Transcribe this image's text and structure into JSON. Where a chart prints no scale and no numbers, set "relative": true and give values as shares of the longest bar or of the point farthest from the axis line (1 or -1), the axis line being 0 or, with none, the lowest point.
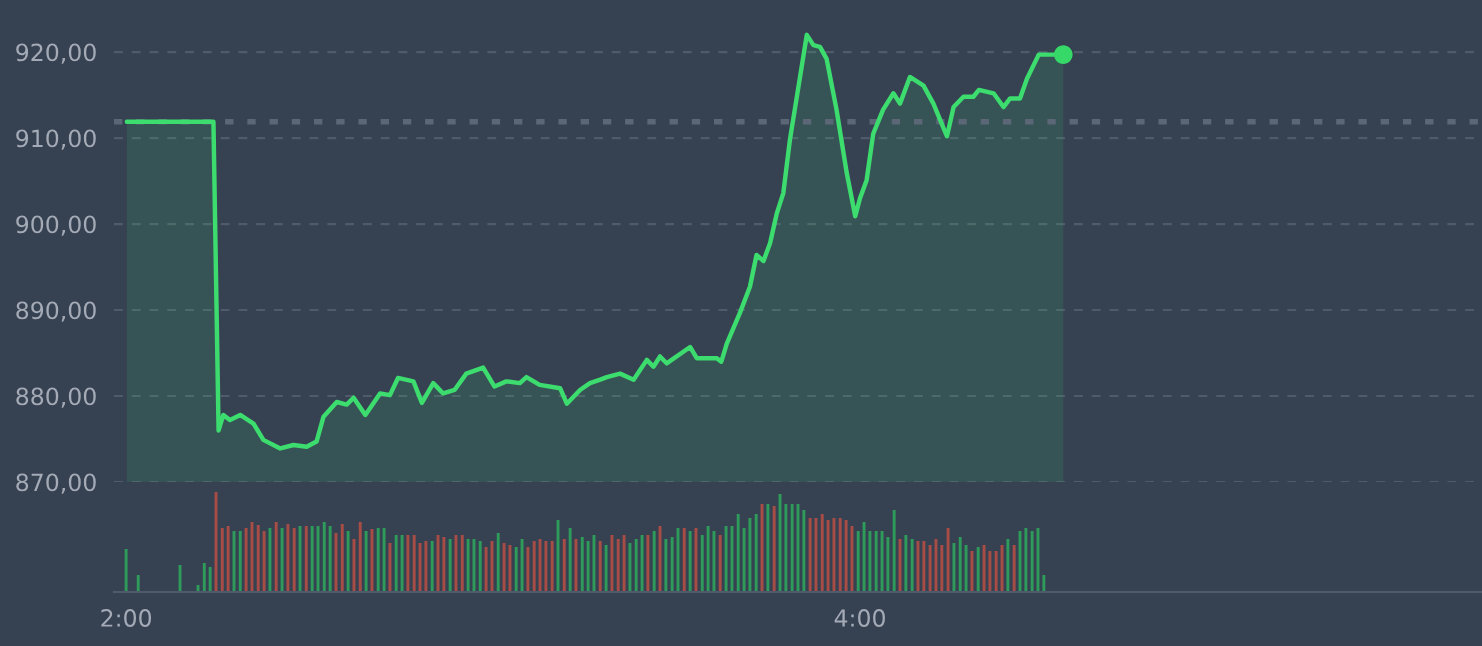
{
  "chart_data": [
    {
      "type": "area",
      "xlim": [
        1.967,
        5.695
      ],
      "ylim": [
        870,
        926.05
      ],
      "yticks": [
        {
          "value": 870,
          "label": "870,00"
        },
        {
          "value": 880,
          "label": "880,00"
        },
        {
          "value": 890,
          "label": "890,00"
        },
        {
          "value": 900,
          "label": "900,00"
        },
        {
          "value": 910,
          "label": "910,00"
        },
        {
          "value": 920,
          "label": "920,00"
        }
      ],
      "tick_labels": "y",
      "grid": "y",
      "ref_lines": [
        {
          "axis": "y",
          "value": 911.9,
          "color": "#5b6677",
          "line_style": "dotted"
        }
      ],
      "series": [
        {
          "type": "area",
          "color": "#3ddc6e",
          "x": [
            2.002,
            2.238,
            2.252,
            2.265,
            2.283,
            2.311,
            2.347,
            2.374,
            2.42,
            2.456,
            2.492,
            2.519,
            2.538,
            2.574,
            2.601,
            2.62,
            2.652,
            2.692,
            2.719,
            2.741,
            2.783,
            2.806,
            2.837,
            2.864,
            2.895,
            2.927,
            2.973,
            3.004,
            3.036,
            3.073,
            3.091,
            3.127,
            3.183,
            3.201,
            3.237,
            3.264,
            3.292,
            3.31,
            3.346,
            3.383,
            3.419,
            3.437,
            3.455,
            3.473,
            3.537,
            3.555,
            3.609,
            3.622,
            3.637,
            3.673,
            3.7,
            3.718,
            3.737,
            3.755,
            3.773,
            3.791,
            3.809,
            3.855,
            3.873,
            3.891,
            3.909,
            3.936,
            3.964,
            3.987,
            4.0,
            4.018,
            4.036,
            4.063,
            4.091,
            4.109,
            4.136,
            4.173,
            4.2,
            4.237,
            4.255,
            4.282,
            4.309,
            4.324,
            4.364,
            4.391,
            4.409,
            4.436,
            4.455,
            4.487,
            4.554
          ],
          "values": [
            911.9,
            911.9,
            876.0,
            877.8,
            877.2,
            877.8,
            876.8,
            874.9,
            873.9,
            874.3,
            874.1,
            874.7,
            877.6,
            879.3,
            879.0,
            879.8,
            877.8,
            880.3,
            880.1,
            882.1,
            881.7,
            879.2,
            881.5,
            880.3,
            880.7,
            882.6,
            883.3,
            881.1,
            881.7,
            881.5,
            882.2,
            881.3,
            880.9,
            879.1,
            880.7,
            881.5,
            881.9,
            882.2,
            882.6,
            881.9,
            884.2,
            883.4,
            884.6,
            883.8,
            885.7,
            884.4,
            884.4,
            884.0,
            886.1,
            889.7,
            892.7,
            896.4,
            895.7,
            897.8,
            901.2,
            903.6,
            909.8,
            922.0,
            920.8,
            920.6,
            919.2,
            913.3,
            905.9,
            900.9,
            903.0,
            905.1,
            910.5,
            913.3,
            915.2,
            914.0,
            917.1,
            916.1,
            914.0,
            910.2,
            913.6,
            914.8,
            914.8,
            915.6,
            915.2,
            913.6,
            914.6,
            914.6,
            916.9,
            919.7,
            919.7
          ]
        },
        {
          "type": "scatter",
          "color": "#36d868",
          "marker": "circle",
          "x": [
            4.554
          ],
          "values": [
            919.7
          ]
        }
      ]
    },
    {
      "type": "bar",
      "relative": true,
      "xlim": [
        1.967,
        5.695
      ],
      "xticks": [
        {
          "value": 2,
          "label": "2:00"
        },
        {
          "value": 4,
          "label": "4:00"
        }
      ],
      "tick_labels": "x",
      "x": [
        2.0,
        2.033,
        2.147,
        2.196,
        2.213,
        2.229,
        2.245,
        2.262,
        2.278,
        2.294,
        2.311,
        2.327,
        2.343,
        2.36,
        2.376,
        2.392,
        2.409,
        2.425,
        2.441,
        2.458,
        2.474,
        2.491,
        2.507,
        2.523,
        2.54,
        2.556,
        2.572,
        2.589,
        2.605,
        2.621,
        2.638,
        2.654,
        2.67,
        2.687,
        2.703,
        2.719,
        2.736,
        2.752,
        2.768,
        2.785,
        2.801,
        2.817,
        2.834,
        2.85,
        2.866,
        2.883,
        2.899,
        2.916,
        2.932,
        2.948,
        2.965,
        2.981,
        2.997,
        3.014,
        3.03,
        3.046,
        3.063,
        3.079,
        3.095,
        3.112,
        3.128,
        3.144,
        3.161,
        3.177,
        3.194,
        3.21,
        3.226,
        3.243,
        3.259,
        3.275,
        3.292,
        3.308,
        3.324,
        3.341,
        3.357,
        3.373,
        3.39,
        3.406,
        3.422,
        3.439,
        3.455,
        3.471,
        3.488,
        3.504,
        3.521,
        3.537,
        3.553,
        3.57,
        3.586,
        3.602,
        3.619,
        3.635,
        3.651,
        3.668,
        3.684,
        3.7,
        3.717,
        3.733,
        3.749,
        3.766,
        3.782,
        3.798,
        3.815,
        3.831,
        3.847,
        3.864,
        3.88,
        3.897,
        3.913,
        3.929,
        3.946,
        3.962,
        3.978,
        3.995,
        4.011,
        4.027,
        4.044,
        4.06,
        4.076,
        4.093,
        4.109,
        4.125,
        4.142,
        4.158,
        4.174,
        4.191,
        4.207,
        4.223,
        4.24,
        4.256,
        4.273,
        4.289,
        4.305,
        4.322,
        4.338,
        4.354,
        4.371,
        4.387,
        4.403,
        4.42,
        4.436,
        4.452,
        4.469,
        4.485,
        4.501
      ],
      "values": [
        0.43,
        0.17,
        0.27,
        0.07,
        0.29,
        0.25,
        1.0,
        0.64,
        0.66,
        0.61,
        0.61,
        0.64,
        0.7,
        0.67,
        0.61,
        0.64,
        0.7,
        0.64,
        0.68,
        0.64,
        0.66,
        0.66,
        0.66,
        0.66,
        0.7,
        0.66,
        0.59,
        0.68,
        0.61,
        0.53,
        0.7,
        0.61,
        0.63,
        0.64,
        0.64,
        0.49,
        0.57,
        0.57,
        0.57,
        0.57,
        0.49,
        0.51,
        0.51,
        0.57,
        0.55,
        0.53,
        0.57,
        0.57,
        0.53,
        0.53,
        0.51,
        0.45,
        0.51,
        0.59,
        0.49,
        0.47,
        0.45,
        0.53,
        0.45,
        0.51,
        0.53,
        0.51,
        0.51,
        0.72,
        0.53,
        0.64,
        0.53,
        0.55,
        0.51,
        0.57,
        0.51,
        0.47,
        0.57,
        0.53,
        0.57,
        0.49,
        0.53,
        0.57,
        0.57,
        0.61,
        0.66,
        0.53,
        0.55,
        0.64,
        0.64,
        0.61,
        0.64,
        0.57,
        0.66,
        0.61,
        0.57,
        0.66,
        0.66,
        0.78,
        0.64,
        0.74,
        0.78,
        0.88,
        0.88,
        0.86,
        0.98,
        0.88,
        0.88,
        0.88,
        0.82,
        0.74,
        0.74,
        0.78,
        0.72,
        0.74,
        0.74,
        0.72,
        0.66,
        0.61,
        0.7,
        0.61,
        0.61,
        0.61,
        0.55,
        0.82,
        0.53,
        0.57,
        0.53,
        0.51,
        0.51,
        0.47,
        0.53,
        0.47,
        0.64,
        0.49,
        0.55,
        0.47,
        0.41,
        0.45,
        0.47,
        0.41,
        0.41,
        0.47,
        0.53,
        0.47,
        0.61,
        0.64,
        0.61,
        0.64,
        0.17
      ],
      "colors": [
        "#2e9b5a",
        "#2e9b5a",
        "#2e9b5a",
        "#2e9b5a",
        "#2e9b5a",
        "#2e9b5a",
        "#a84d46",
        "#a84d46",
        "#a84d46",
        "#2e9b5a",
        "#2e9b5a",
        "#a84d46",
        "#a84d46",
        "#a84d46",
        "#a84d46",
        "#2e9b5a",
        "#a84d46",
        "#2e9b5a",
        "#a84d46",
        "#a84d46",
        "#2e9b5a",
        "#a84d46",
        "#2e9b5a",
        "#2e9b5a",
        "#2e9b5a",
        "#2e9b5a",
        "#a84d46",
        "#a84d46",
        "#2e9b5a",
        "#a84d46",
        "#a84d46",
        "#2e9b5a",
        "#a84d46",
        "#2e9b5a",
        "#2e9b5a",
        "#a84d46",
        "#2e9b5a",
        "#2e9b5a",
        "#a84d46",
        "#a84d46",
        "#a84d46",
        "#a84d46",
        "#2e9b5a",
        "#a84d46",
        "#a84d46",
        "#2e9b5a",
        "#a84d46",
        "#a84d46",
        "#2e9b5a",
        "#2e9b5a",
        "#2e9b5a",
        "#a84d46",
        "#a84d46",
        "#2e9b5a",
        "#a84d46",
        "#a84d46",
        "#2e9b5a",
        "#2e9b5a",
        "#a84d46",
        "#a84d46",
        "#a84d46",
        "#a84d46",
        "#a84d46",
        "#2e9b5a",
        "#a84d46",
        "#2e9b5a",
        "#a84d46",
        "#2e9b5a",
        "#2e9b5a",
        "#2e9b5a",
        "#a84d46",
        "#2e9b5a",
        "#a84d46",
        "#a84d46",
        "#a84d46",
        "#2e9b5a",
        "#2e9b5a",
        "#2e9b5a",
        "#a84d46",
        "#2e9b5a",
        "#a84d46",
        "#2e9b5a",
        "#2e9b5a",
        "#2e9b5a",
        "#a84d46",
        "#2e9b5a",
        "#a84d46",
        "#2e9b5a",
        "#2e9b5a",
        "#2e9b5a",
        "#a84d46",
        "#2e9b5a",
        "#2e9b5a",
        "#2e9b5a",
        "#2e9b5a",
        "#2e9b5a",
        "#2e9b5a",
        "#a84d46",
        "#2e9b5a",
        "#a84d46",
        "#2e9b5a",
        "#2e9b5a",
        "#2e9b5a",
        "#2e9b5a",
        "#2e9b5a",
        "#a84d46",
        "#a84d46",
        "#a84d46",
        "#a84d46",
        "#a84d46",
        "#a84d46",
        "#a84d46",
        "#a84d46",
        "#2e9b5a",
        "#2e9b5a",
        "#2e9b5a",
        "#2e9b5a",
        "#2e9b5a",
        "#2e9b5a",
        "#2e9b5a",
        "#a84d46",
        "#2e9b5a",
        "#2e9b5a",
        "#a84d46",
        "#a84d46",
        "#a84d46",
        "#a84d46",
        "#a84d46",
        "#a84d46",
        "#2e9b5a",
        "#2e9b5a",
        "#2e9b5a",
        "#a84d46",
        "#2e9b5a",
        "#a84d46",
        "#a84d46",
        "#a84d46",
        "#a84d46",
        "#2e9b5a",
        "#a84d46",
        "#2e9b5a",
        "#2e9b5a",
        "#2e9b5a",
        "#2e9b5a",
        "#2e9b5a"
      ]
    }
  ]
}
